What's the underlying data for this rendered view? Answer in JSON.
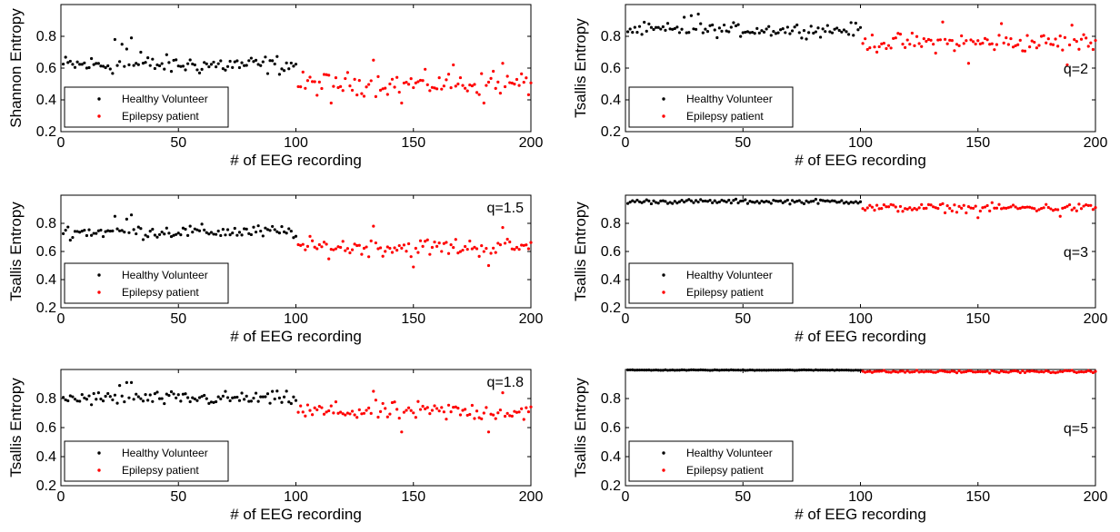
{
  "figure": {
    "colors": {
      "healthy": "#000000",
      "epilepsy": "#ff0000",
      "axis": "#000000"
    }
  },
  "chart_data": [
    {
      "type": "scatter",
      "annotation": "",
      "xlabel": "# of EEG recording",
      "ylabel": "Shannon Entropy",
      "xlim": [
        0,
        200
      ],
      "ylim": [
        0.2,
        1.0
      ],
      "xticks": [
        0,
        50,
        100,
        150,
        200
      ],
      "yticks": [
        0.2,
        0.4,
        0.6,
        0.8
      ],
      "legend": {
        "placement": "lower-left",
        "entries": [
          "Healthy Volunteer",
          "Epilepsy patient"
        ]
      },
      "series": [
        {
          "name": "Healthy Volunteer",
          "color": "#000000",
          "x_range": [
            1,
            100
          ],
          "center": 0.62,
          "spread": 0.05,
          "highlights": [
            [
              23,
              0.78
            ],
            [
              26,
              0.75
            ],
            [
              30,
              0.79
            ],
            [
              28,
              0.72
            ],
            [
              34,
              0.7
            ]
          ]
        },
        {
          "name": "Epilepsy patient",
          "color": "#ff0000",
          "x_range": [
            101,
            200
          ],
          "center": 0.5,
          "spread": 0.06,
          "highlights": [
            [
              133,
              0.65
            ],
            [
              167,
              0.62
            ],
            [
              184,
              0.58
            ],
            [
              188,
              0.63
            ],
            [
              115,
              0.38
            ],
            [
              145,
              0.38
            ],
            [
              180,
              0.38
            ]
          ]
        }
      ]
    },
    {
      "type": "scatter",
      "annotation": "q=2",
      "xlabel": "# of EEG recording",
      "ylabel": "Tsallis Entropy",
      "xlim": [
        0,
        200
      ],
      "ylim": [
        0.2,
        1.0
      ],
      "xticks": [
        0,
        50,
        100,
        150,
        200
      ],
      "yticks": [
        0.2,
        0.4,
        0.6,
        0.8
      ],
      "legend": {
        "placement": "lower-left",
        "entries": [
          "Healthy Volunteer",
          "Epilepsy patient"
        ]
      },
      "series": [
        {
          "name": "Healthy Volunteer",
          "color": "#000000",
          "x_range": [
            1,
            100
          ],
          "center": 0.84,
          "spread": 0.035,
          "highlights": [
            [
              28,
              0.93
            ],
            [
              31,
              0.94
            ],
            [
              25,
              0.92
            ]
          ]
        },
        {
          "name": "Epilepsy patient",
          "color": "#ff0000",
          "x_range": [
            101,
            200
          ],
          "center": 0.76,
          "spread": 0.05,
          "highlights": [
            [
              135,
              0.89
            ],
            [
              160,
              0.88
            ],
            [
              190,
              0.87
            ],
            [
              146,
              0.63
            ],
            [
              188,
              0.62
            ]
          ]
        }
      ]
    },
    {
      "type": "scatter",
      "annotation": "q=1.5",
      "xlabel": "# of EEG recording",
      "ylabel": "Tsallis Entropy",
      "xlim": [
        0,
        200
      ],
      "ylim": [
        0.2,
        1.0
      ],
      "xticks": [
        0,
        50,
        100,
        150,
        200
      ],
      "yticks": [
        0.2,
        0.4,
        0.6,
        0.8
      ],
      "legend": {
        "placement": "lower-left",
        "entries": [
          "Healthy Volunteer",
          "Epilepsy patient"
        ]
      },
      "series": [
        {
          "name": "Healthy Volunteer",
          "color": "#000000",
          "x_range": [
            1,
            100
          ],
          "center": 0.74,
          "spread": 0.04,
          "highlights": [
            [
              23,
              0.85
            ],
            [
              30,
              0.86
            ],
            [
              28,
              0.83
            ]
          ]
        },
        {
          "name": "Epilepsy patient",
          "color": "#ff0000",
          "x_range": [
            101,
            200
          ],
          "center": 0.63,
          "spread": 0.055,
          "highlights": [
            [
              133,
              0.78
            ],
            [
              188,
              0.77
            ],
            [
              150,
              0.49
            ],
            [
              182,
              0.5
            ]
          ]
        }
      ]
    },
    {
      "type": "scatter",
      "annotation": "q=3",
      "xlabel": "# of EEG recording",
      "ylabel": "Tsallis Entropy",
      "xlim": [
        0,
        200
      ],
      "ylim": [
        0.2,
        1.0
      ],
      "xticks": [
        0,
        50,
        100,
        150,
        200
      ],
      "yticks": [
        0.2,
        0.4,
        0.6,
        0.8
      ],
      "legend": {
        "placement": "lower-left",
        "entries": [
          "Healthy Volunteer",
          "Epilepsy patient"
        ]
      },
      "series": [
        {
          "name": "Healthy Volunteer",
          "color": "#000000",
          "x_range": [
            1,
            100
          ],
          "center": 0.955,
          "spread": 0.013,
          "highlights": []
        },
        {
          "name": "Epilepsy patient",
          "color": "#ff0000",
          "x_range": [
            101,
            200
          ],
          "center": 0.91,
          "spread": 0.025,
          "highlights": [
            [
              150,
              0.84
            ],
            [
              185,
              0.85
            ]
          ]
        }
      ]
    },
    {
      "type": "scatter",
      "annotation": "q=1.8",
      "xlabel": "# of EEG recording",
      "ylabel": "Tsallis Entropy",
      "xlim": [
        0,
        200
      ],
      "ylim": [
        0.2,
        1.0
      ],
      "xticks": [
        0,
        50,
        100,
        150,
        200
      ],
      "yticks": [
        0.2,
        0.4,
        0.6,
        0.8
      ],
      "legend": {
        "placement": "lower-left",
        "entries": [
          "Healthy Volunteer",
          "Epilepsy patient"
        ]
      },
      "series": [
        {
          "name": "Healthy Volunteer",
          "color": "#000000",
          "x_range": [
            1,
            100
          ],
          "center": 0.8,
          "spread": 0.04,
          "highlights": [
            [
              28,
              0.91
            ],
            [
              30,
              0.91
            ],
            [
              25,
              0.89
            ]
          ]
        },
        {
          "name": "Epilepsy patient",
          "color": "#ff0000",
          "x_range": [
            101,
            200
          ],
          "center": 0.71,
          "spread": 0.055,
          "highlights": [
            [
              133,
              0.85
            ],
            [
              188,
              0.84
            ],
            [
              145,
              0.57
            ],
            [
              182,
              0.57
            ]
          ]
        }
      ]
    },
    {
      "type": "scatter",
      "annotation": "q=5",
      "xlabel": "# of EEG recording",
      "ylabel": "Tsallis Entropy",
      "xlim": [
        0,
        200
      ],
      "ylim": [
        0.2,
        1.0
      ],
      "xticks": [
        0,
        50,
        100,
        150,
        200
      ],
      "yticks": [
        0.2,
        0.4,
        0.6,
        0.8
      ],
      "legend": {
        "placement": "lower-left",
        "entries": [
          "Healthy Volunteer",
          "Epilepsy patient"
        ]
      },
      "series": [
        {
          "name": "Healthy Volunteer",
          "color": "#000000",
          "x_range": [
            1,
            100
          ],
          "center": 0.996,
          "spread": 0.002,
          "highlights": []
        },
        {
          "name": "Epilepsy patient",
          "color": "#ff0000",
          "x_range": [
            101,
            200
          ],
          "center": 0.985,
          "spread": 0.007,
          "highlights": []
        }
      ]
    }
  ]
}
